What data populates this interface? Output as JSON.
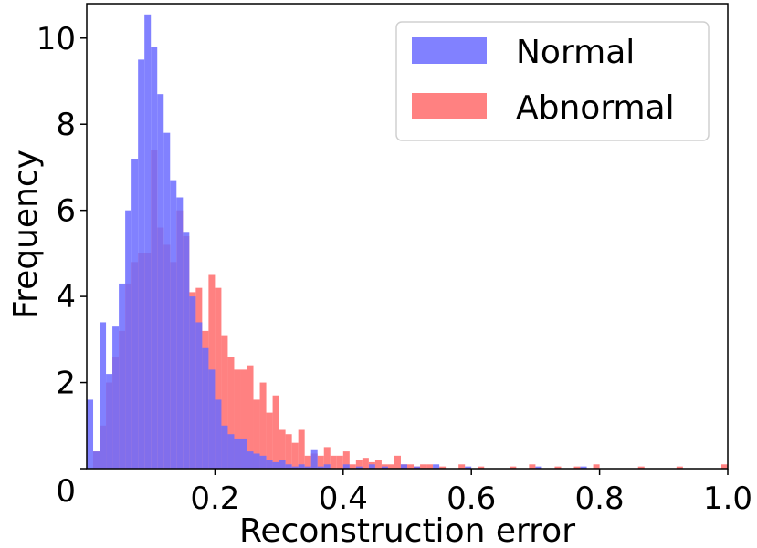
{
  "chart_data": {
    "type": "bar",
    "subtype": "overlaid-histogram",
    "xlabel": "Reconstruction error",
    "ylabel": "Frequency",
    "xlim": [
      0.0,
      1.0
    ],
    "ylim": [
      0,
      10.8
    ],
    "x_ticks": [
      0.2,
      0.4,
      0.6,
      0.8,
      1.0
    ],
    "x_tick_labels": [
      "0.2",
      "0.4",
      "0.6",
      "0.8",
      "1.0"
    ],
    "y_ticks": [
      0,
      2,
      4,
      6,
      8,
      10
    ],
    "y_tick_labels": [
      "0",
      "2",
      "4",
      "6",
      "8",
      "10"
    ],
    "bin_width": 0.01,
    "legend": {
      "position": "top-right"
    },
    "series": [
      {
        "name": "Normal",
        "color": "#6b6bff",
        "opacity": 0.85,
        "x": [
          0.0,
          0.01,
          0.02,
          0.03,
          0.04,
          0.05,
          0.06,
          0.07,
          0.08,
          0.09,
          0.1,
          0.11,
          0.12,
          0.13,
          0.14,
          0.15,
          0.16,
          0.17,
          0.18,
          0.19,
          0.2,
          0.21,
          0.22,
          0.23,
          0.24,
          0.25,
          0.26,
          0.27,
          0.28,
          0.29,
          0.3,
          0.31,
          0.32,
          0.33,
          0.34,
          0.35,
          0.36,
          0.37,
          0.4,
          0.42,
          0.44,
          0.46,
          0.49,
          0.51,
          0.54,
          0.59,
          0.7,
          0.77
        ],
        "values": [
          1.6,
          0.4,
          3.4,
          2.2,
          3.3,
          4.3,
          6.0,
          7.2,
          9.5,
          10.55,
          9.8,
          8.7,
          7.8,
          6.7,
          6.3,
          5.5,
          4.0,
          3.4,
          2.8,
          2.3,
          1.6,
          1.0,
          0.8,
          0.7,
          0.7,
          0.4,
          0.35,
          0.3,
          0.2,
          0.15,
          0.2,
          0.1,
          0.05,
          0.1,
          0.05,
          0.45,
          0.05,
          0.1,
          0.1,
          0.05,
          0.1,
          0.05,
          0.1,
          0.05,
          0.1,
          0.05,
          0.05,
          0.05
        ]
      },
      {
        "name": "Abnormal",
        "color": "#ff6b6b",
        "opacity": 0.85,
        "x": [
          0.01,
          0.02,
          0.03,
          0.04,
          0.05,
          0.06,
          0.07,
          0.08,
          0.09,
          0.1,
          0.11,
          0.12,
          0.13,
          0.14,
          0.15,
          0.16,
          0.17,
          0.18,
          0.19,
          0.2,
          0.21,
          0.22,
          0.23,
          0.24,
          0.25,
          0.26,
          0.27,
          0.28,
          0.29,
          0.3,
          0.31,
          0.32,
          0.33,
          0.34,
          0.35,
          0.36,
          0.37,
          0.38,
          0.39,
          0.4,
          0.41,
          0.42,
          0.43,
          0.44,
          0.45,
          0.46,
          0.47,
          0.48,
          0.49,
          0.5,
          0.51,
          0.52,
          0.53,
          0.55,
          0.58,
          0.61,
          0.66,
          0.69,
          0.73,
          0.76,
          0.79,
          0.86,
          0.92,
          0.99
        ],
        "values": [
          0.4,
          1.0,
          2.0,
          2.6,
          3.2,
          4.3,
          4.8,
          5.0,
          5.0,
          7.4,
          5.6,
          5.2,
          4.8,
          6.0,
          5.4,
          4.1,
          4.2,
          3.2,
          4.5,
          4.2,
          3.1,
          2.6,
          2.3,
          2.3,
          2.4,
          1.6,
          2.0,
          1.3,
          1.7,
          0.9,
          0.8,
          0.6,
          0.9,
          0.3,
          0.35,
          0.3,
          0.5,
          0.3,
          0.3,
          0.4,
          0.1,
          0.2,
          0.25,
          0.15,
          0.2,
          0.1,
          0.1,
          0.3,
          0.1,
          0.1,
          0.05,
          0.1,
          0.1,
          0.05,
          0.1,
          0.05,
          0.05,
          0.1,
          0.05,
          0.05,
          0.1,
          0.05,
          0.05,
          0.1
        ]
      }
    ]
  }
}
